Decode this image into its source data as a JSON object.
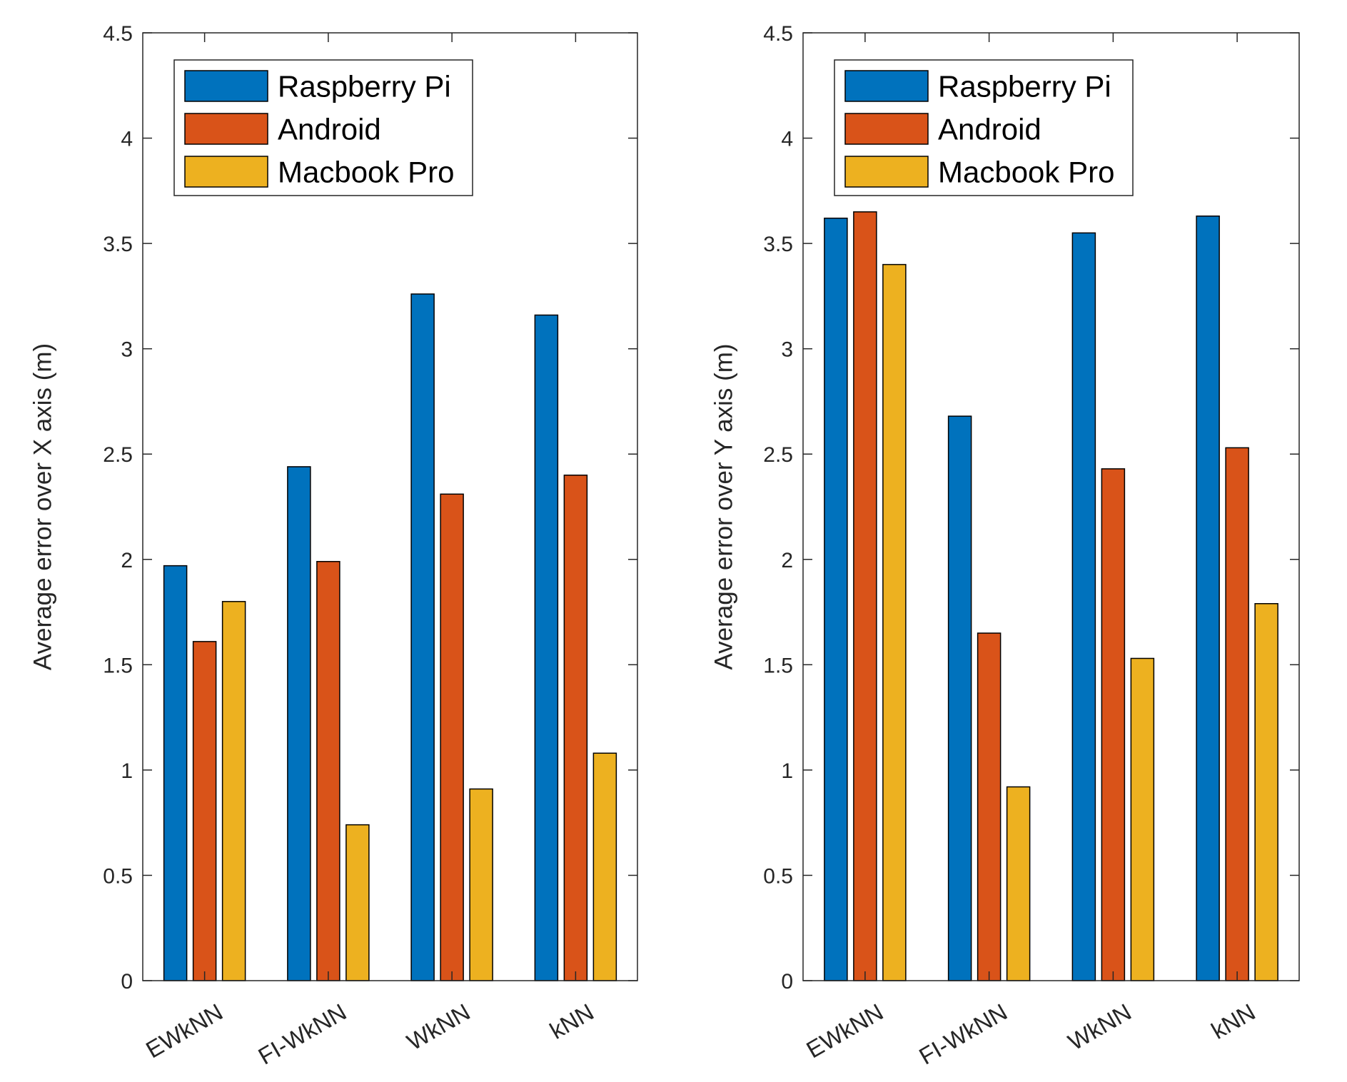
{
  "chart_data": [
    {
      "type": "bar",
      "title": "",
      "xlabel": "",
      "ylabel": "Average error over X axis (m)",
      "ylim": [
        0,
        4.5
      ],
      "yticks": [
        "0",
        "0.5",
        "1",
        "1.5",
        "2",
        "2.5",
        "3",
        "3.5",
        "4",
        "4.5"
      ],
      "categories": [
        "EWkNN",
        "FI-WkNN",
        "WkNN",
        "kNN"
      ],
      "grid": false,
      "legend_position": "top-left",
      "series": [
        {
          "name": "Raspberry Pi",
          "color": "#0072BD",
          "values": [
            1.97,
            2.44,
            3.26,
            3.16
          ]
        },
        {
          "name": "Android",
          "color": "#D95319",
          "values": [
            1.61,
            1.99,
            2.31,
            2.4
          ]
        },
        {
          "name": "Macbook Pro",
          "color": "#EDB120",
          "values": [
            1.8,
            0.74,
            0.91,
            1.08
          ]
        }
      ]
    },
    {
      "type": "bar",
      "title": "",
      "xlabel": "",
      "ylabel": "Average error over Y axis (m)",
      "ylim": [
        0,
        4.5
      ],
      "yticks": [
        "0",
        "0.5",
        "1",
        "1.5",
        "2",
        "2.5",
        "3",
        "3.5",
        "4",
        "4.5"
      ],
      "categories": [
        "EWkNN",
        "FI-WkNN",
        "WkNN",
        "kNN"
      ],
      "grid": false,
      "legend_position": "top-left",
      "series": [
        {
          "name": "Raspberry Pi",
          "color": "#0072BD",
          "values": [
            3.62,
            2.68,
            3.55,
            3.63
          ]
        },
        {
          "name": "Android",
          "color": "#D95319",
          "values": [
            3.65,
            1.65,
            2.43,
            2.53
          ]
        },
        {
          "name": "Macbook Pro",
          "color": "#EDB120",
          "values": [
            3.4,
            0.92,
            1.53,
            1.79
          ]
        }
      ]
    }
  ]
}
